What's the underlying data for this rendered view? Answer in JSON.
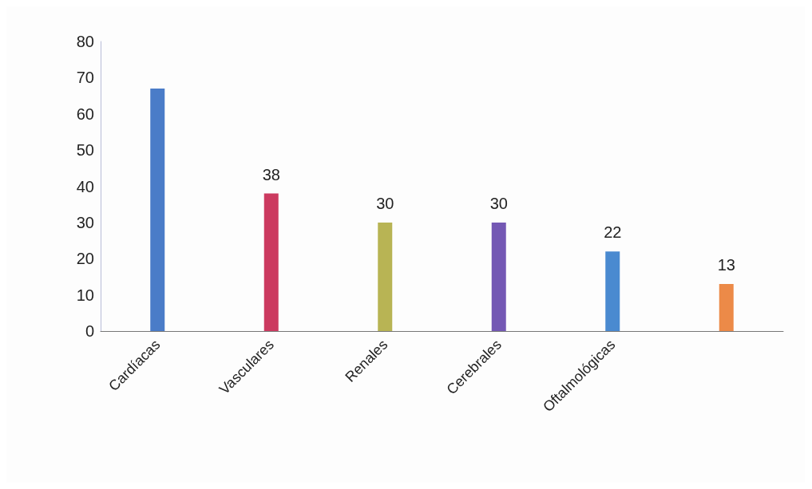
{
  "chart_data": {
    "type": "bar",
    "categories": [
      "Cardíacas",
      "Vasculares",
      "Renales",
      "Cerebrales",
      "Oftalmológicas",
      null
    ],
    "values": [
      67,
      38,
      30,
      30,
      22,
      13
    ],
    "colors": [
      "#4a7cc8",
      "#cc3a60",
      "#b8b454",
      "#7458b4",
      "#4a8ad0",
      "#ec8a48"
    ],
    "value_labels": [
      null,
      "38",
      "30",
      "30",
      "22",
      "13"
    ],
    "ylim": [
      0,
      80
    ],
    "yticks": [
      0,
      10,
      20,
      30,
      40,
      50,
      60,
      70,
      80
    ],
    "grid": false
  }
}
